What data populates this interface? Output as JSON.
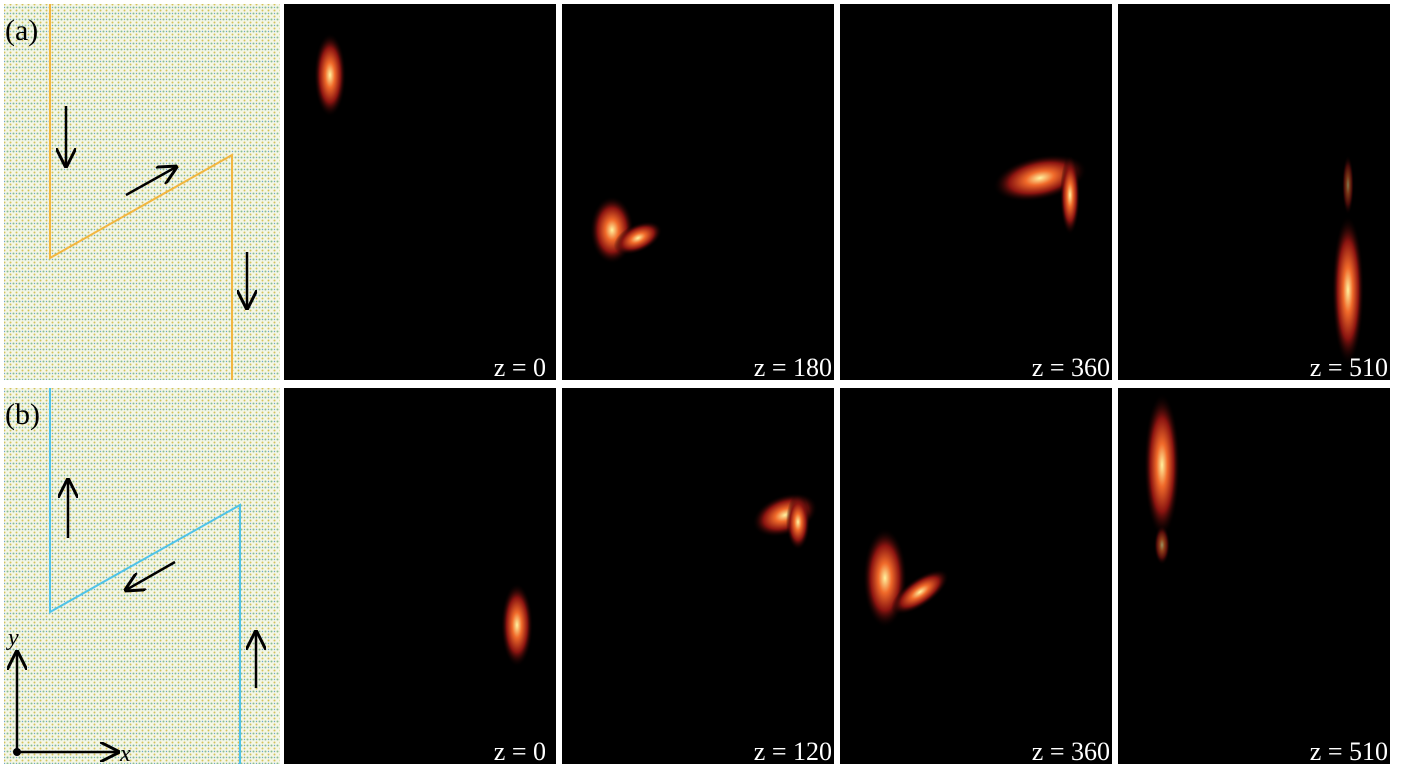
{
  "rows": [
    {
      "label": "(a)",
      "frames": [
        "z = 0",
        "z = 180",
        "z = 360",
        "z = 510"
      ]
    },
    {
      "label": "(b)",
      "frames": [
        "z = 0",
        "z = 120",
        "z = 360",
        "z = 510"
      ]
    }
  ],
  "axes": {
    "x": "x",
    "y": "y"
  }
}
